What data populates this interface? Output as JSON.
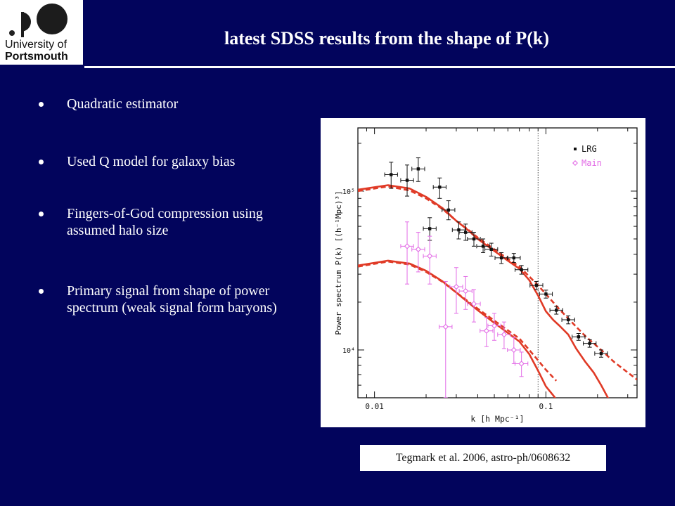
{
  "header": {
    "logo_line1": "University of",
    "logo_line2": "Portsmouth",
    "title": "latest SDSS results from the shape of P(k)"
  },
  "bullets": [
    {
      "text": "Quadratic estimator"
    },
    {
      "text": "Used Q model for galaxy bias"
    },
    {
      "text": "Fingers-of-God compression using assumed halo size"
    },
    {
      "text": "Primary signal from shape of power spectrum (weak signal form baryons)"
    }
  ],
  "caption": "Tegmark et al. 2006, astro-ph/0608632",
  "chart_data": {
    "type": "scatter",
    "title": "",
    "xlabel": "k [h Mpc⁻¹]",
    "ylabel": "Power spectrum P(k) [(h⁻¹Mpc)³]",
    "x_scale": "log",
    "y_scale": "log",
    "xlim": [
      0.008,
      0.34
    ],
    "ylim": [
      5000,
      250000
    ],
    "x_tick_labels": [
      {
        "value": 0.01,
        "label": "0.01"
      },
      {
        "value": 0.1,
        "label": "0.1"
      }
    ],
    "y_tick_labels": [
      {
        "value": 10000,
        "label": "10⁴"
      },
      {
        "value": 100000,
        "label": "10⁵"
      }
    ],
    "vertical_line_k": 0.09,
    "legend_placement": "top-right",
    "series": [
      {
        "name": "LRG",
        "color": "#111111",
        "marker": "square",
        "points": [
          {
            "k": 0.0125,
            "p": 127000,
            "lo": 104000,
            "hi": 152000
          },
          {
            "k": 0.0155,
            "p": 117000,
            "lo": 93000,
            "hi": 146000
          },
          {
            "k": 0.018,
            "p": 138000,
            "lo": 115000,
            "hi": 162000
          },
          {
            "k": 0.024,
            "p": 106000,
            "lo": 90000,
            "hi": 121000
          },
          {
            "k": 0.027,
            "p": 76000,
            "lo": 66000,
            "hi": 87000
          },
          {
            "k": 0.021,
            "p": 58000,
            "lo": 49000,
            "hi": 68000
          },
          {
            "k": 0.031,
            "p": 57000,
            "lo": 50000,
            "hi": 64000
          },
          {
            "k": 0.034,
            "p": 55000,
            "lo": 49000,
            "hi": 62000
          },
          {
            "k": 0.038,
            "p": 50000,
            "lo": 45000,
            "hi": 55000
          },
          {
            "k": 0.043,
            "p": 45000,
            "lo": 41000,
            "hi": 50000
          },
          {
            "k": 0.048,
            "p": 43000,
            "lo": 39000,
            "hi": 47000
          },
          {
            "k": 0.055,
            "p": 38000,
            "lo": 35000,
            "hi": 41000
          },
          {
            "k": 0.065,
            "p": 38000,
            "lo": 35500,
            "hi": 40500
          },
          {
            "k": 0.072,
            "p": 32000,
            "lo": 30000,
            "hi": 34000
          },
          {
            "k": 0.088,
            "p": 25500,
            "lo": 24000,
            "hi": 27000
          },
          {
            "k": 0.1,
            "p": 22500,
            "lo": 21200,
            "hi": 23800
          },
          {
            "k": 0.115,
            "p": 17800,
            "lo": 16800,
            "hi": 18800
          },
          {
            "k": 0.135,
            "p": 15500,
            "lo": 14600,
            "hi": 16400
          },
          {
            "k": 0.155,
            "p": 12100,
            "lo": 11500,
            "hi": 12700
          },
          {
            "k": 0.18,
            "p": 11000,
            "lo": 10400,
            "hi": 11600
          },
          {
            "k": 0.21,
            "p": 9500,
            "lo": 9000,
            "hi": 10000
          }
        ]
      },
      {
        "name": "Main",
        "color": "#e26be6",
        "marker": "diamond",
        "points": [
          {
            "k": 0.0155,
            "p": 45000,
            "lo": 26000,
            "hi": 64000
          },
          {
            "k": 0.018,
            "p": 43000,
            "lo": 31000,
            "hi": 55000
          },
          {
            "k": 0.021,
            "p": 39000,
            "lo": 26000,
            "hi": 52000
          },
          {
            "k": 0.026,
            "p": 14000,
            "lo": 5000,
            "hi": 27000
          },
          {
            "k": 0.03,
            "p": 25000,
            "lo": 17000,
            "hi": 33000
          },
          {
            "k": 0.034,
            "p": 23500,
            "lo": 18000,
            "hi": 29000
          },
          {
            "k": 0.038,
            "p": 19500,
            "lo": 15000,
            "hi": 24000
          },
          {
            "k": 0.045,
            "p": 13200,
            "lo": 10500,
            "hi": 16000
          },
          {
            "k": 0.05,
            "p": 14200,
            "lo": 11500,
            "hi": 17000
          },
          {
            "k": 0.057,
            "p": 12500,
            "lo": 10200,
            "hi": 15000
          },
          {
            "k": 0.065,
            "p": 10000,
            "lo": 8200,
            "hi": 12000
          },
          {
            "k": 0.072,
            "p": 8200,
            "lo": 6800,
            "hi": 9700
          }
        ]
      }
    ],
    "model_curves": [
      {
        "color": "#e03a26",
        "style": "solid",
        "k": [
          0.008,
          0.012,
          0.016,
          0.02,
          0.025,
          0.03,
          0.035,
          0.04,
          0.05,
          0.06,
          0.07,
          0.08,
          0.09,
          0.1,
          0.11,
          0.12,
          0.135,
          0.15,
          0.17,
          0.19,
          0.21,
          0.23,
          0.25
        ],
        "p": [
          102000,
          109000,
          104000,
          92000,
          78000,
          65000,
          57000,
          50000,
          42000,
          36500,
          32500,
          27500,
          22000,
          17500,
          15500,
          14200,
          12500,
          10200,
          8400,
          7200,
          6000,
          5000,
          4300
        ]
      },
      {
        "color": "#e03a26",
        "style": "dashed",
        "k": [
          0.008,
          0.012,
          0.016,
          0.02,
          0.025,
          0.03,
          0.035,
          0.04,
          0.05,
          0.06,
          0.07,
          0.08,
          0.09,
          0.1,
          0.11,
          0.12,
          0.135,
          0.15,
          0.17,
          0.19,
          0.21,
          0.25,
          0.34
        ],
        "p": [
          100000,
          107000,
          101000,
          90000,
          77000,
          65000,
          57500,
          51000,
          43000,
          37500,
          33500,
          29000,
          25500,
          22500,
          20000,
          18000,
          15800,
          14000,
          12200,
          11000,
          10000,
          8400,
          6500
        ]
      },
      {
        "color": "#e03a26",
        "style": "solid",
        "k": [
          0.008,
          0.012,
          0.016,
          0.02,
          0.025,
          0.03,
          0.035,
          0.04,
          0.05,
          0.06,
          0.07,
          0.08,
          0.09,
          0.1,
          0.11,
          0.12
        ],
        "p": [
          34000,
          36500,
          35000,
          31500,
          27000,
          23000,
          20000,
          17800,
          14800,
          12800,
          11300,
          9400,
          7400,
          5900,
          5200,
          4600
        ]
      },
      {
        "color": "#e03a26",
        "style": "dashed",
        "k": [
          0.008,
          0.012,
          0.016,
          0.02,
          0.025,
          0.03,
          0.035,
          0.04,
          0.05,
          0.06,
          0.07,
          0.08,
          0.09,
          0.1,
          0.115
        ],
        "p": [
          33500,
          36000,
          34500,
          31000,
          26800,
          23000,
          20300,
          18200,
          15300,
          13300,
          11800,
          10000,
          8600,
          7500,
          6400
        ]
      }
    ]
  }
}
